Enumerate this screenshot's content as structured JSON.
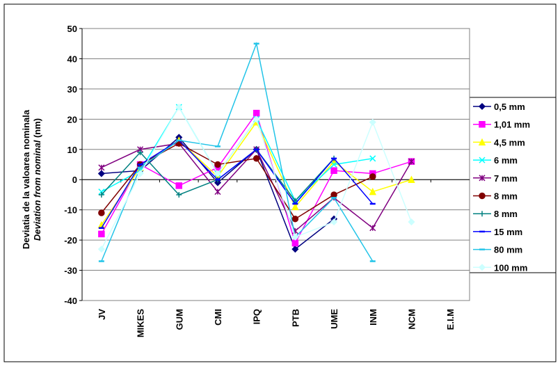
{
  "chart_data": {
    "type": "line",
    "y_label": [
      "Deviatia de la valoarea nominala",
      "Deviation from nominal",
      "(nm)"
    ],
    "categories": [
      "JV",
      "MIKES",
      "GUM",
      "CMI",
      "IPQ",
      "PTB",
      "UME",
      "INM",
      "NCM",
      "E.I.M"
    ],
    "ylim": [
      -40,
      50
    ],
    "yticks": [
      -40,
      -30,
      -20,
      -10,
      0,
      10,
      20,
      30,
      40,
      50
    ],
    "grid": true,
    "series": [
      {
        "name": "0,5 mm",
        "color": "#000080",
        "marker": "diamond",
        "values": [
          2,
          3,
          14,
          -1,
          10,
          -23,
          -13,
          null,
          null,
          null
        ]
      },
      {
        "name": "1,01 mm",
        "color": "#ff00ff",
        "marker": "square",
        "values": [
          -18,
          5,
          -2,
          4,
          22,
          -21,
          3,
          2,
          6,
          null
        ]
      },
      {
        "name": "4,5 mm",
        "color": "#ffff00",
        "marker": "triangle",
        "values": [
          -15,
          4,
          13,
          1,
          19,
          -9,
          6,
          -4,
          0,
          null
        ]
      },
      {
        "name": "6 mm",
        "color": "#00ffff",
        "marker": "x",
        "values": [
          -4,
          3,
          24,
          2,
          20,
          -7,
          5,
          7,
          null,
          null
        ]
      },
      {
        "name": "7 mm",
        "color": "#800080",
        "marker": "star",
        "values": [
          4,
          10,
          12,
          -4,
          10,
          -17,
          -6,
          -16,
          6,
          null
        ]
      },
      {
        "name": "8 mm",
        "color": "#800000",
        "marker": "circle",
        "values": [
          -11,
          5,
          12,
          5,
          7,
          -13,
          -5,
          1,
          null,
          null
        ]
      },
      {
        "name": "8 mm",
        "color": "#008080",
        "marker": "plus",
        "values": [
          -5,
          9,
          -5,
          0,
          10,
          -7,
          7,
          null,
          null,
          null
        ]
      },
      {
        "name": "15 mm",
        "color": "#0000ff",
        "marker": "dash",
        "values": [
          -16,
          5,
          13,
          0,
          10,
          -8,
          7,
          -8,
          null,
          null
        ]
      },
      {
        "name": "80 mm",
        "color": "#22c4e8",
        "marker": "dash",
        "values": [
          -27,
          4,
          13,
          11,
          45,
          -19,
          -6,
          -27,
          null,
          null
        ]
      },
      {
        "name": "100 mm",
        "color": "#ccffff",
        "marker": "diamond",
        "values": [
          -23,
          2,
          24,
          2,
          20,
          -19,
          -14,
          19,
          -14,
          null
        ]
      }
    ]
  }
}
